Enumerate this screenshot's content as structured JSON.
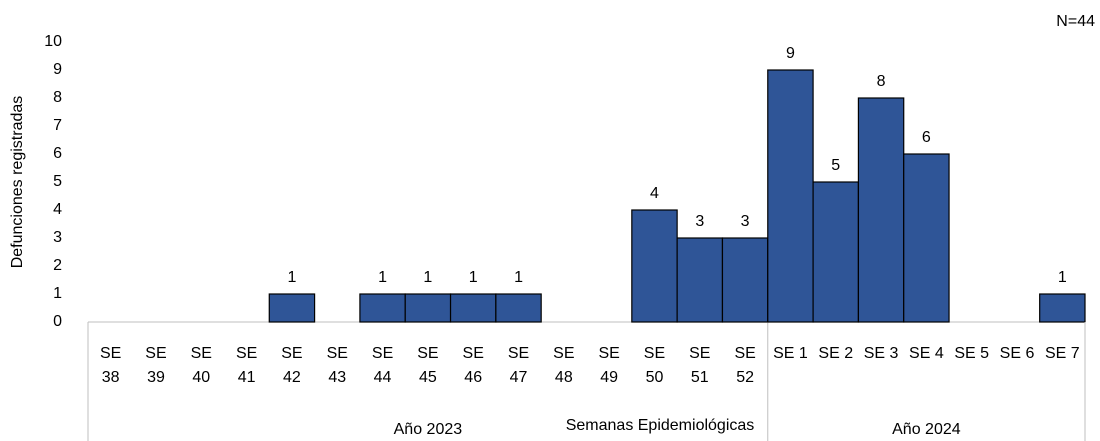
{
  "chart_data": {
    "type": "bar",
    "annotation": "N=44",
    "y_label": "Defunciones registradas",
    "x_label": "Semanas Epidemiológicas",
    "color": "#2f5597",
    "ylim": [
      0,
      10
    ],
    "yticks": [
      0,
      1,
      2,
      3,
      4,
      5,
      6,
      7,
      8,
      9,
      10
    ],
    "grid": false,
    "groups": [
      {
        "label": "Año 2023",
        "categories": [
          "SE 38",
          "SE 39",
          "SE 40",
          "SE 41",
          "SE 42",
          "SE 43",
          "SE 44",
          "SE 45",
          "SE 46",
          "SE 47",
          "SE 48",
          "SE 49",
          "SE 50",
          "SE 51",
          "SE 52"
        ],
        "values": [
          0,
          0,
          0,
          0,
          1,
          0,
          1,
          1,
          1,
          1,
          0,
          0,
          4,
          3,
          3
        ]
      },
      {
        "label": "Año 2024",
        "categories": [
          "SE 1",
          "SE 2",
          "SE 3",
          "SE 4",
          "SE 5",
          "SE 6",
          "SE 7"
        ],
        "values": [
          9,
          5,
          8,
          6,
          0,
          0,
          1
        ]
      }
    ]
  }
}
